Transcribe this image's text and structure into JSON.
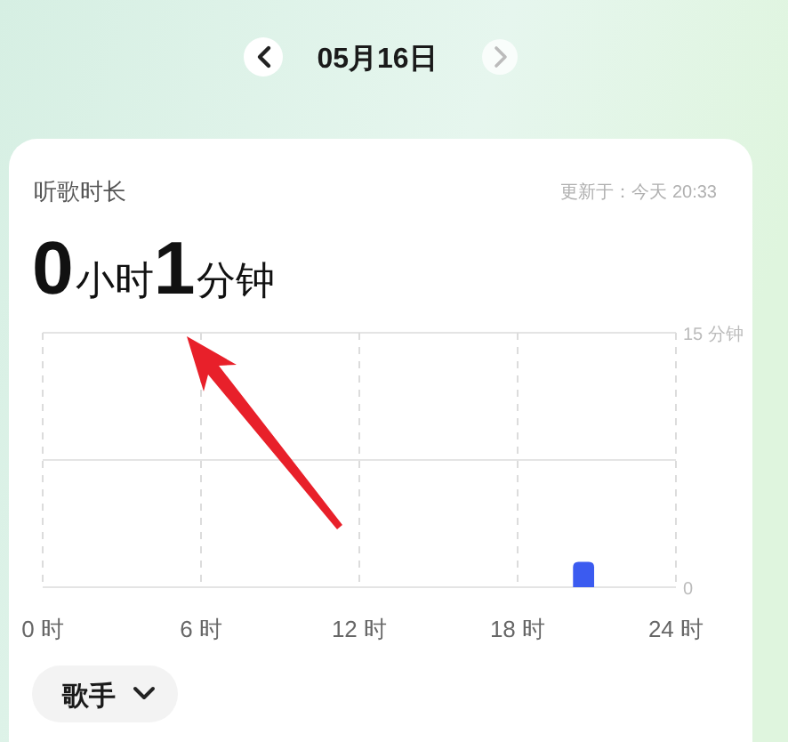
{
  "chart_data": {
    "type": "bar",
    "title": "听歌时长",
    "subtitle": "0小时1分钟",
    "annotations": [
      "05月16日",
      "更新于：今天 20:33",
      "歌手"
    ],
    "x": [
      20.5
    ],
    "values": [
      1.5
    ],
    "color": "#3b5bf0",
    "xlim": [
      0,
      24
    ],
    "xticks": [
      {
        "value": 0,
        "label": "0 时"
      },
      {
        "value": 6,
        "label": "6 时"
      },
      {
        "value": 12,
        "label": "12 时"
      },
      {
        "value": 18,
        "label": "18 时"
      },
      {
        "value": 24,
        "label": "24 时"
      }
    ],
    "ylim": [
      0,
      15
    ],
    "yticks": [
      0,
      {
        "value": 15,
        "label": "15 分钟"
      }
    ],
    "ref_lines": [
      {
        "axis": "y",
        "value": 7.5,
        "color": "#e4e4e4"
      }
    ],
    "grid": true
  }
}
